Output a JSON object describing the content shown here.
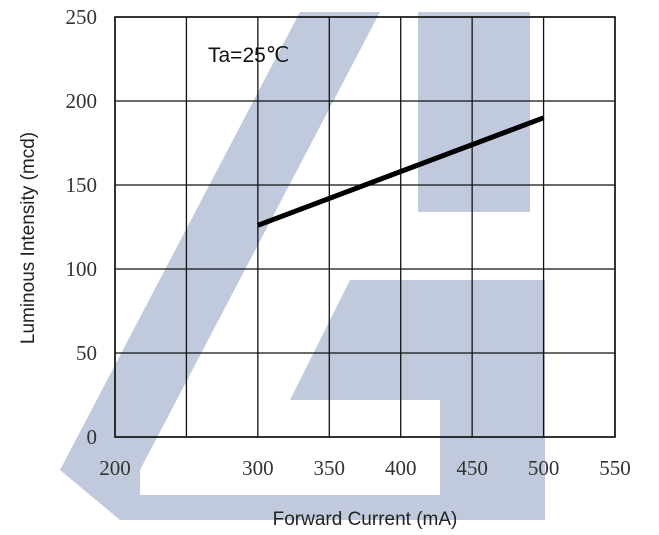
{
  "chart_data": {
    "type": "line",
    "title": "",
    "xlabel": "Forward Current (mA)",
    "ylabel": "Luminous Intensity  (mcd)",
    "xlim": [
      200,
      550
    ],
    "ylim": [
      0,
      250
    ],
    "x_ticks": [
      200,
      300,
      350,
      400,
      450,
      500,
      550
    ],
    "y_ticks": [
      0,
      50,
      100,
      150,
      200,
      250
    ],
    "x_grid": [
      200,
      250,
      300,
      350,
      400,
      450,
      500,
      550
    ],
    "y_grid": [
      0,
      50,
      100,
      150,
      200,
      250
    ],
    "grid": true,
    "annotation": "Ta=25℃",
    "series": [
      {
        "x": [
          300,
          500
        ],
        "y": [
          126,
          190
        ],
        "color": "#000000"
      }
    ]
  },
  "colors": {
    "watermark": "#a9b6d0",
    "grid": "#111111",
    "line": "#000000"
  }
}
